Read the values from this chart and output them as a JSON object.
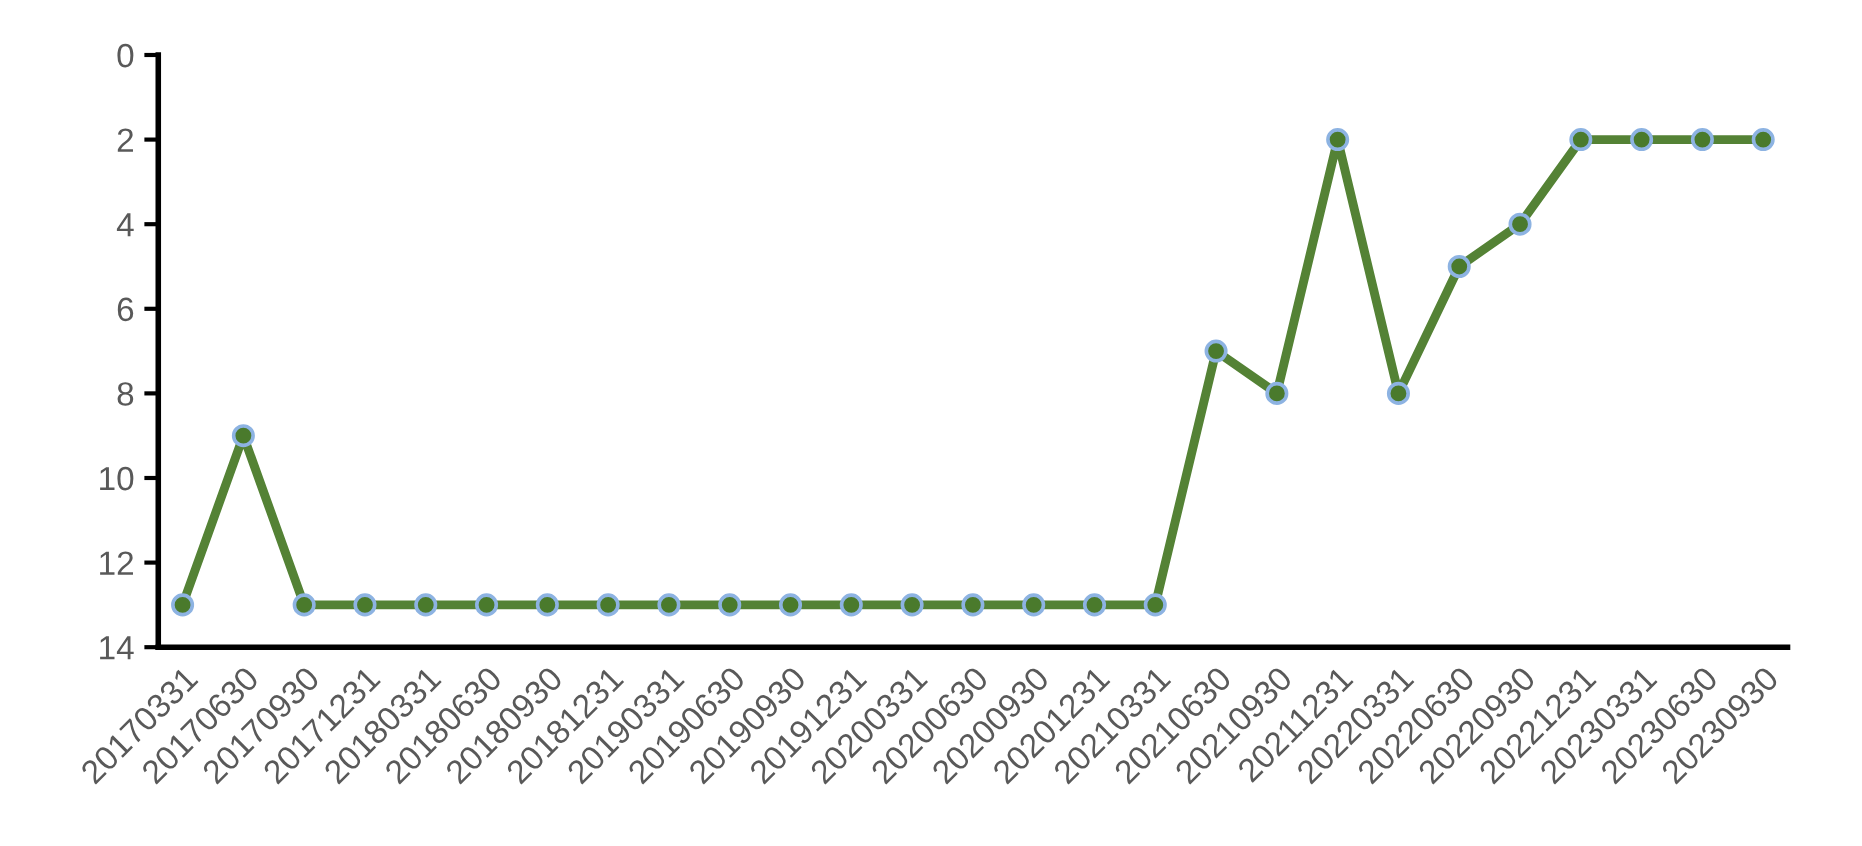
{
  "chart_data": {
    "type": "line",
    "categories": [
      "20170331",
      "20170630",
      "20170930",
      "20171231",
      "20180331",
      "20180630",
      "20180930",
      "20181231",
      "20190331",
      "20190630",
      "20190930",
      "20191231",
      "20200331",
      "20200630",
      "20200930",
      "20201231",
      "20210331",
      "20210630",
      "20210930",
      "20211231",
      "20220331",
      "20220630",
      "20220930",
      "20221231",
      "20230331",
      "20230630",
      "20230930"
    ],
    "series": [
      {
        "color": "#548235",
        "values": [
          13,
          9,
          13,
          13,
          13,
          13,
          13,
          13,
          13,
          13,
          13,
          13,
          13,
          13,
          13,
          13,
          13,
          7,
          8,
          2,
          8,
          5,
          4,
          2,
          2,
          2,
          2
        ]
      }
    ],
    "ylim": [
      14,
      0
    ],
    "yticks": [
      0,
      2,
      4,
      6,
      8,
      10,
      12,
      14
    ],
    "marker": "circle",
    "line_style": "solid",
    "grid": false,
    "legend": false
  }
}
